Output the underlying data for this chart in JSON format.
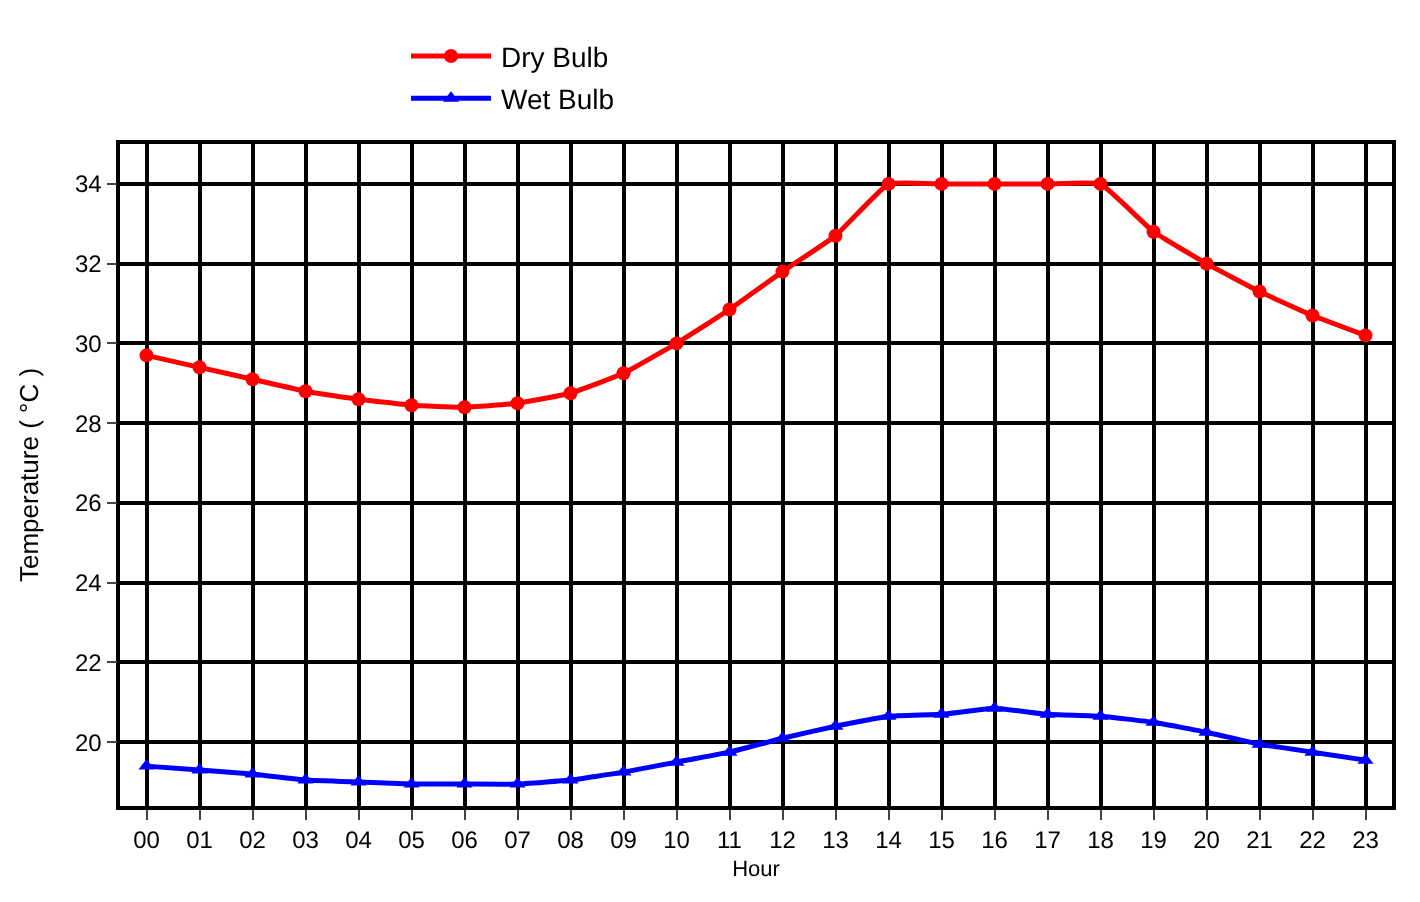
{
  "chart_data": {
    "type": "line",
    "xlabel": "Hour",
    "ylabel": "Temperature ( °C )",
    "categories": [
      "00",
      "01",
      "02",
      "03",
      "04",
      "05",
      "06",
      "07",
      "08",
      "09",
      "10",
      "11",
      "12",
      "13",
      "14",
      "15",
      "16",
      "17",
      "18",
      "19",
      "20",
      "21",
      "22",
      "23"
    ],
    "series": [
      {
        "name": "Dry Bulb",
        "color": "#ff0000",
        "marker": "circle",
        "values": [
          29.7,
          29.4,
          29.1,
          28.8,
          28.6,
          28.45,
          28.4,
          28.5,
          28.75,
          29.25,
          30.0,
          30.85,
          31.8,
          32.7,
          34,
          34,
          34,
          34,
          34,
          32.8,
          32.0,
          31.3,
          30.7,
          30.2
        ]
      },
      {
        "name": "Wet Bulb",
        "color": "#0000ff",
        "marker": "triangle",
        "values": [
          19.4,
          19.3,
          19.2,
          19.05,
          19.0,
          18.95,
          18.95,
          18.95,
          19.05,
          19.25,
          19.5,
          19.75,
          20.1,
          20.4,
          20.65,
          20.7,
          20.85,
          20.7,
          20.65,
          20.5,
          20.25,
          19.95,
          19.75,
          19.55
        ]
      }
    ],
    "ylim": [
      18.4,
      35
    ],
    "yticks": [
      20,
      22,
      24,
      26,
      28,
      30,
      32,
      34
    ],
    "grid": true,
    "legend": "top",
    "line_style": "solid"
  }
}
